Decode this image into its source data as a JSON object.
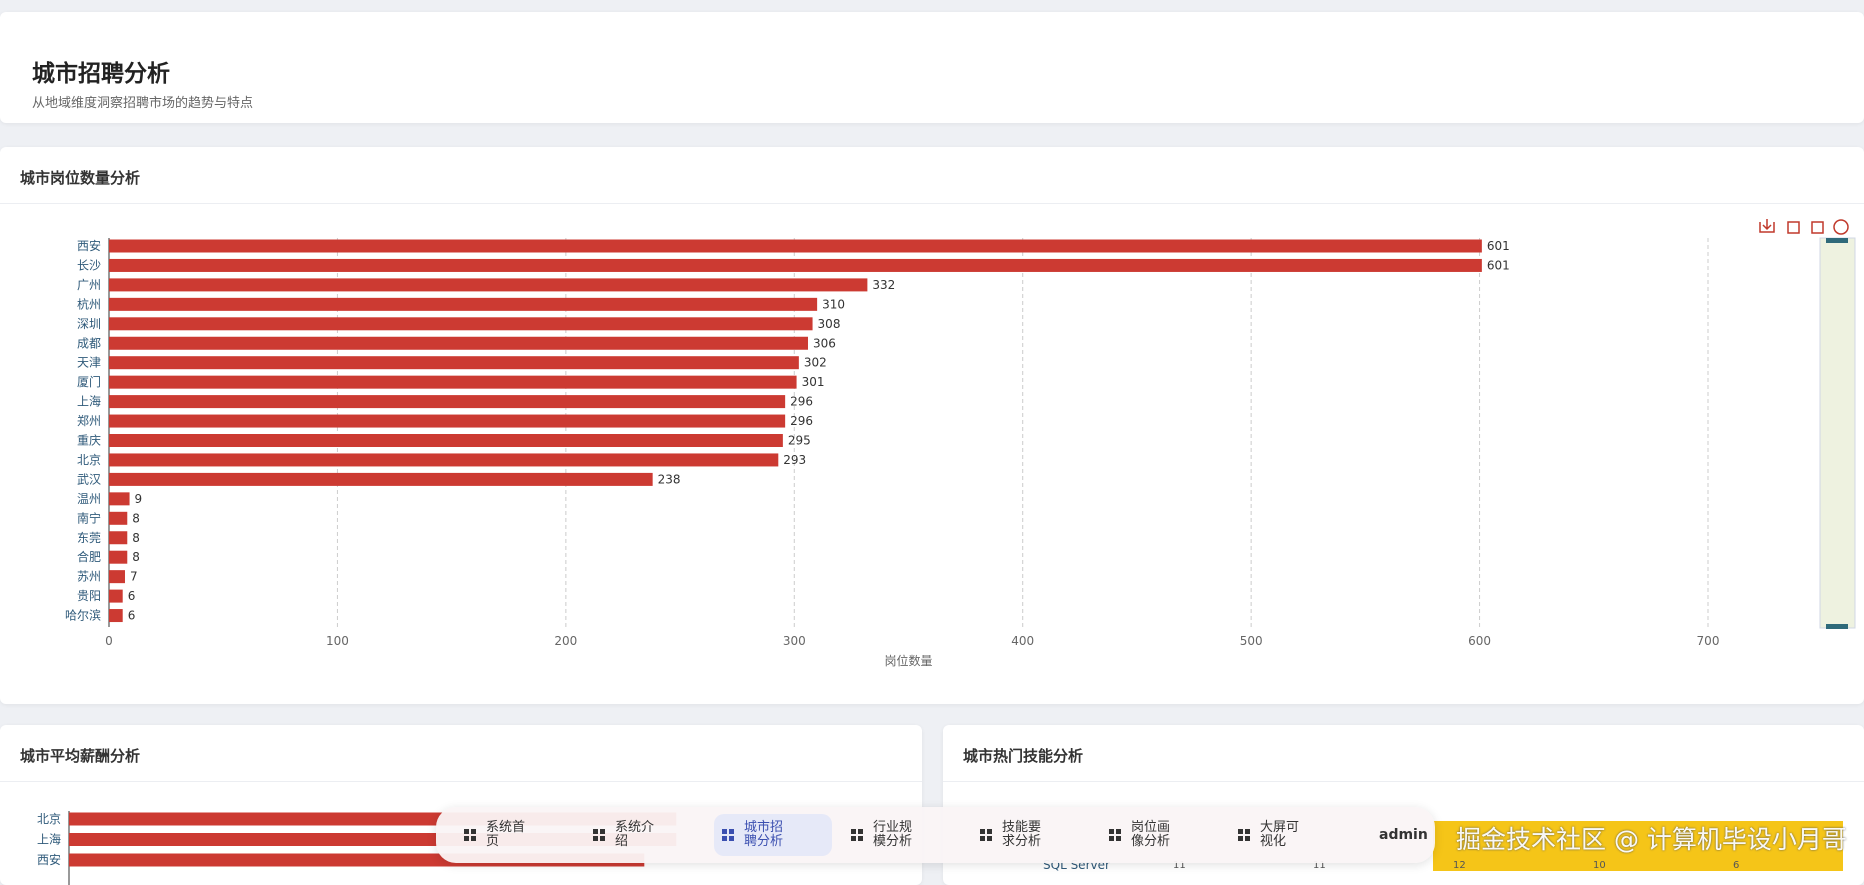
{
  "header": {
    "title": "城市招聘分析",
    "subtitle": "从地域维度洞察招聘市场的趋势与特点"
  },
  "chart_data": [
    {
      "type": "hbar",
      "title": "城市岗位数量分析",
      "categories": [
        "西安",
        "长沙",
        "广州",
        "杭州",
        "深圳",
        "成都",
        "天津",
        "厦门",
        "上海",
        "郑州",
        "重庆",
        "北京",
        "武汉",
        "温州",
        "南宁",
        "东莞",
        "合肥",
        "苏州",
        "贵阳",
        "哈尔滨"
      ],
      "values": [
        601,
        601,
        332,
        310,
        308,
        306,
        302,
        301,
        296,
        296,
        295,
        293,
        238,
        9,
        8,
        8,
        8,
        7,
        6,
        6
      ],
      "color": "#cc3a32",
      "xlim": [
        0,
        700
      ],
      "xticks": [
        0,
        100,
        200,
        300,
        400,
        500,
        600,
        700
      ],
      "xlabel": "岗位数量",
      "grid": true
    },
    {
      "type": "hbar",
      "title": "城市平均薪酬分析",
      "categories": [
        "北京",
        "上海",
        "西安"
      ],
      "values": [
        19,
        19,
        18
      ],
      "color": "#cc3a32",
      "xlim": [
        0,
        26
      ],
      "grid": false
    }
  ],
  "skill_panel": {
    "title": "城市热门技能分析",
    "row_label": "SQL Server",
    "values": [
      11,
      11,
      12,
      10,
      6
    ]
  },
  "nav": {
    "items": [
      "系统首页",
      "系统介绍",
      "城市招聘分析",
      "行业规模分析",
      "技能要求分析",
      "岗位画像分析",
      "大屏可视化"
    ],
    "active": 2,
    "user": "admin"
  },
  "watermark": "掘金技术社区 @ 计算机毕设小月哥"
}
